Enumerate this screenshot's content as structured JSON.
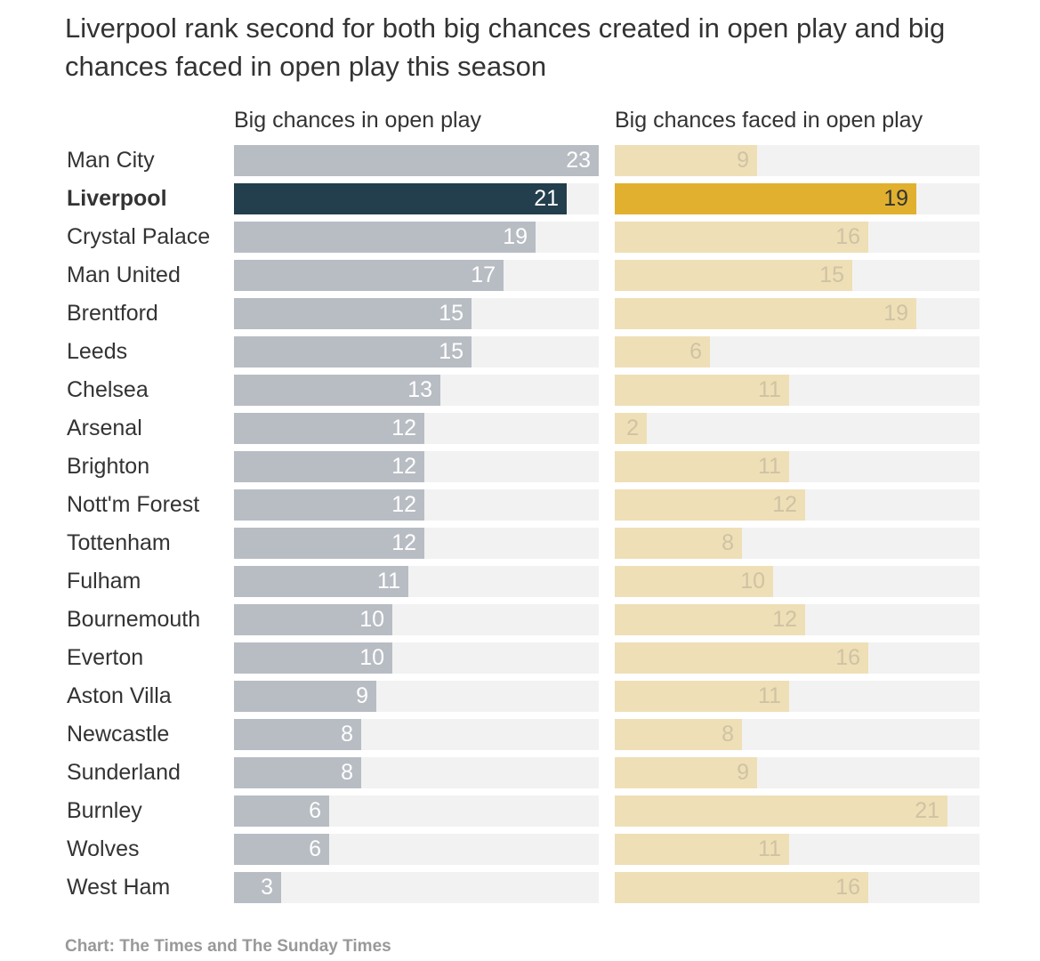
{
  "title": "Liverpool rank second for both big chances created in open play and big chances faced in open play this season",
  "source": "Chart: The Times and The Sunday Times",
  "colors": {
    "left_bar": "#b8bdc4",
    "left_highlight": "#233e4c",
    "right_bar": "#efdfb6",
    "right_highlight": "#e1b02e",
    "track": "#f2f2f2",
    "value_on_muted": "#ffffff",
    "value_on_right_muted": "#cfc3a4",
    "value_on_left_highlight": "#ffffff",
    "value_on_right_highlight": "#333333"
  },
  "chart_data": {
    "type": "bar",
    "orientation": "horizontal",
    "title": "Liverpool rank second for both big chances created in open play and big chances faced in open play this season",
    "highlight": "Liverpool",
    "xlim": [
      0,
      23
    ],
    "categories": [
      "Man City",
      "Liverpool",
      "Crystal Palace",
      "Man United",
      "Brentford",
      "Leeds",
      "Chelsea",
      "Arsenal",
      "Brighton",
      "Nott'm Forest",
      "Tottenham",
      "Fulham",
      "Bournemouth",
      "Everton",
      "Aston Villa",
      "Newcastle",
      "Sunderland",
      "Burnley",
      "Wolves",
      "West Ham"
    ],
    "series": [
      {
        "name": "Big chances in open play",
        "values": [
          23,
          21,
          19,
          17,
          15,
          15,
          13,
          12,
          12,
          12,
          12,
          11,
          10,
          10,
          9,
          8,
          8,
          6,
          6,
          3
        ]
      },
      {
        "name": "Big chances faced in open play",
        "values": [
          9,
          19,
          16,
          15,
          19,
          6,
          11,
          2,
          11,
          12,
          8,
          10,
          12,
          16,
          11,
          8,
          9,
          21,
          11,
          16
        ]
      }
    ]
  }
}
